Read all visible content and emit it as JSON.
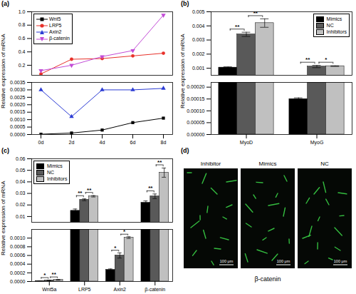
{
  "chart_data": [
    {
      "type": "line",
      "title": "(a)",
      "y_label": "Relative expression of mRNA",
      "categories": [
        "0d",
        "2d",
        "4d",
        "6d",
        "8d"
      ],
      "series": [
        {
          "name": "Wnt5",
          "color": "#000000",
          "marker": "square",
          "values": [
            2e-05,
            0.0001,
            0.0003,
            0.0008,
            0.0011
          ]
        },
        {
          "name": "LRP5",
          "color": "#e8312a",
          "marker": "circle",
          "values": [
            0.07,
            0.29,
            0.3,
            0.34,
            0.38
          ]
        },
        {
          "name": "Axin2",
          "color": "#2b3bd4",
          "marker": "triangle",
          "values": [
            0.003,
            0.0012,
            0.003,
            0.003,
            0.0031
          ]
        },
        {
          "name": "β-catenin",
          "color": "#c24bd6",
          "marker": "triangle-down",
          "values": [
            0.12,
            0.2,
            0.33,
            0.42,
            0.95
          ]
        }
      ],
      "y_segments": [
        {
          "ylim": [
            0.05,
            1.0
          ],
          "yticks": [
            0.2,
            0.4,
            0.6,
            0.8,
            {
              "value": 1,
              "label": "1.0"
            }
          ]
        },
        {
          "ylim": [
            0,
            0.0035
          ],
          "yticks": [
            {
              "value": 0,
              "label": "0.0000"
            },
            0.0005,
            {
              "value": 0.001,
              "label": "0.0010"
            },
            0.0015,
            {
              "value": 0.002,
              "label": "0.0020"
            },
            0.0025,
            {
              "value": 0.003,
              "label": "0.0030"
            },
            0.0035
          ]
        }
      ],
      "legend": "top-left"
    },
    {
      "type": "bar",
      "title": "(b)",
      "y_label": "Relative expression of mRNA",
      "categories": [
        "MyoD",
        "MyoG"
      ],
      "series": [
        {
          "name": "Mimics",
          "color": "#000000",
          "values": [
            0.00105,
            0.00015
          ],
          "errors": [
            5e-05,
            5e-06
          ]
        },
        {
          "name": "NC",
          "color": "#595959",
          "values": [
            0.0034,
            0.00112
          ],
          "errors": [
            0.00015,
            8e-05
          ]
        },
        {
          "name": "Inhibitors",
          "color": "#c0c0c0",
          "values": [
            0.0042,
            0.00115
          ],
          "errors": [
            0.0003,
            2e-05
          ]
        }
      ],
      "significance": [
        {
          "category": "MyoD",
          "pair": [
            "Mimics",
            "NC"
          ],
          "label": "**"
        },
        {
          "category": "MyoD",
          "pair": [
            "NC",
            "Inhibitors"
          ],
          "label": "**"
        },
        {
          "category": "MyoG",
          "pair": [
            "Mimics",
            "NC"
          ],
          "label": "**"
        },
        {
          "category": "MyoG",
          "pair": [
            "NC",
            "Inhibitors"
          ],
          "label": "*"
        }
      ],
      "y_segments": [
        {
          "ylim": [
            0.0005,
            0.005
          ],
          "yticks": [
            0.001,
            0.002,
            0.003,
            0.004,
            0.005
          ]
        },
        {
          "ylim": [
            0,
            0.00022
          ],
          "yticks": [
            {
              "value": 0,
              "label": "0.00000"
            },
            5e-05,
            {
              "value": 0.0001,
              "label": "0.00010"
            },
            0.00015,
            {
              "value": 0.0002,
              "label": "0.00020"
            }
          ]
        }
      ],
      "legend": "top-right"
    },
    {
      "type": "bar",
      "title": "(c)",
      "y_label": "Relative expression of mRNA",
      "categories": [
        "Wnt5a",
        "LRP5",
        "Axin2",
        "β-catenin"
      ],
      "series": [
        {
          "name": "Mimics",
          "color": "#000000",
          "values": [
            1e-05,
            0.015,
            0.00027,
            0.022
          ],
          "errors": [
            3e-06,
            0.0015,
            2e-05,
            0.0015
          ]
        },
        {
          "name": "NC",
          "color": "#595959",
          "values": [
            2.5e-05,
            0.0245,
            0.0006,
            0.0275
          ],
          "errors": [
            5e-06,
            0.0008,
            6e-05,
            0.002
          ]
        },
        {
          "name": "Inhibitors",
          "color": "#c0c0c0",
          "values": [
            4e-05,
            0.0275,
            0.00101,
            0.048
          ],
          "errors": [
            5e-06,
            0.0006,
            2e-05,
            0.004
          ]
        }
      ],
      "significance": [
        {
          "category": "Wnt5a",
          "pair": [
            "Mimics",
            "NC"
          ],
          "label": "*"
        },
        {
          "category": "Wnt5a",
          "pair": [
            "NC",
            "Inhibitors"
          ],
          "label": "**"
        },
        {
          "category": "LRP5",
          "pair": [
            "Mimics",
            "NC"
          ],
          "label": "**"
        },
        {
          "category": "LRP5",
          "pair": [
            "NC",
            "Inhibitors"
          ],
          "label": "**"
        },
        {
          "category": "Axin2",
          "pair": [
            "Mimics",
            "NC"
          ],
          "label": "*"
        },
        {
          "category": "Axin2",
          "pair": [
            "NC",
            "Inhibitors"
          ],
          "label": "*"
        },
        {
          "category": "β-catenin",
          "pair": [
            "Mimics",
            "NC"
          ],
          "label": "**"
        },
        {
          "category": "β-catenin",
          "pair": [
            "NC",
            "Inhibitors"
          ],
          "label": "**"
        }
      ],
      "y_segments": [
        {
          "ylim": [
            0.005,
            0.06
          ],
          "yticks": [
            0.01,
            0.02,
            0.03,
            0.04,
            0.05,
            0.06
          ]
        },
        {
          "ylim": [
            0,
            0.0012
          ],
          "yticks": [
            {
              "value": 0,
              "label": "0.0000"
            },
            0.0002,
            0.0004,
            0.0006,
            0.0008,
            {
              "value": 0.001,
              "label": "0.0010"
            }
          ]
        }
      ],
      "legend": "top-left"
    },
    {
      "type": "image",
      "title": "(d)",
      "panels": [
        "Inhibitor",
        "Mimics",
        "NC"
      ],
      "scale_bar": "100 μm",
      "caption": "β-catenin"
    }
  ]
}
